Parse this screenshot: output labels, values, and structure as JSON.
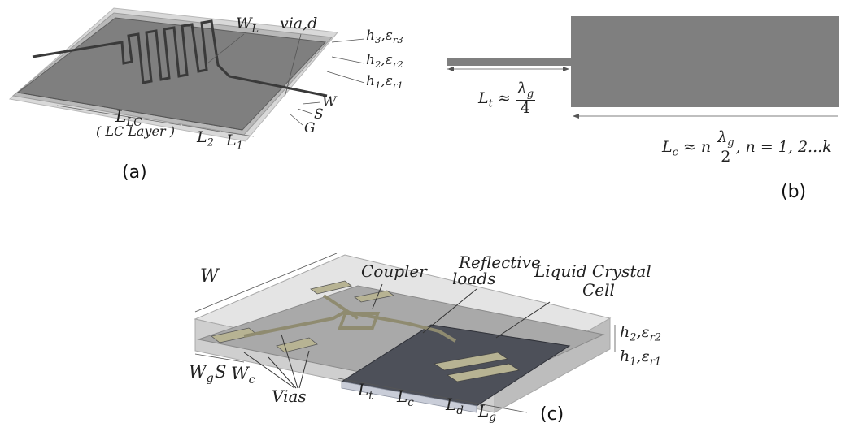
{
  "captions": {
    "a": "(a)",
    "b": "(b)",
    "c": "(c)"
  },
  "fig_a": {
    "wl": "W",
    "wl_sub": "L",
    "via": "via,d",
    "h3": "h",
    "h3_sub": "3",
    "eps3": ",ε",
    "eps3_sub": "r3",
    "h2": "h",
    "h2_sub": "2",
    "eps2": ",ε",
    "eps2_sub": "r2",
    "h1": "h",
    "h1_sub": "1",
    "eps1": ",ε",
    "eps1_sub": "r1",
    "w": "W",
    "s": "S",
    "g": "G",
    "llc": "L",
    "llc_sub": "LC",
    "lc_layer": "( LC Layer )",
    "l2": "L",
    "l2_sub": "2",
    "l1": "L",
    "l1_sub": "1"
  },
  "fig_b": {
    "lt_main": "L",
    "lt_sub": "t",
    "lt_approx": " ≈ ",
    "lt_num": "λ",
    "lt_num_sub": "g",
    "lt_den": "4",
    "lc_main": "L",
    "lc_sub": "c",
    "lc_approx": " ≈ n",
    "lc_num": "λ",
    "lc_num_sub": "g",
    "lc_den": "2",
    "lc_tail": ", n = 1, 2...k"
  },
  "fig_c": {
    "w": "W",
    "coupler": "Coupler",
    "reflective": "Reflective",
    "loads": "loads",
    "lc1": "Liquid Crystal",
    "lc2": "Cell",
    "h2": "h",
    "h2_sub": "2",
    "eps2": ",ε",
    "eps2_sub": "r2",
    "h1": "h",
    "h1_sub": "1",
    "eps1": ",ε",
    "eps1_sub": "r1",
    "wg": "W",
    "wg_sub": "g",
    "s": "S",
    "wc": "W",
    "wc_sub": "c",
    "vias": "Vias",
    "lt": "L",
    "lt_sub": "t",
    "lc": "L",
    "lc_sub": "c",
    "ld": "L",
    "ld_sub": "d",
    "lg": "L",
    "lg_sub": "g"
  }
}
